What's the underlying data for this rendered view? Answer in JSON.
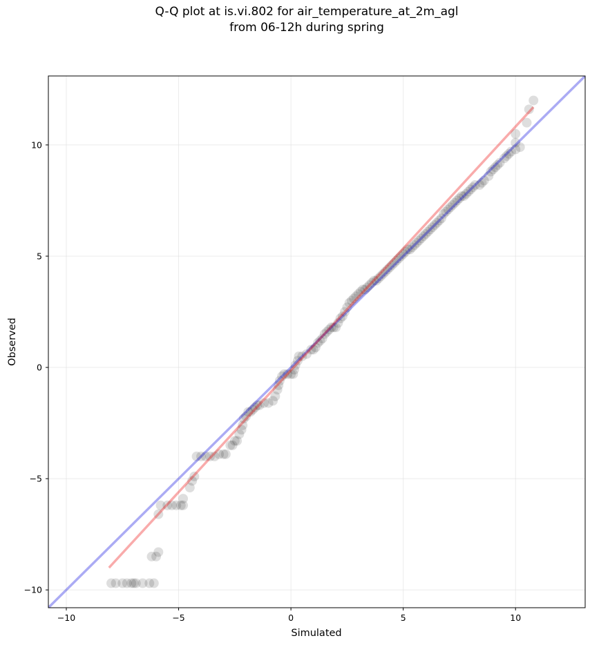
{
  "chart_data": {
    "type": "scatter",
    "title": [
      "Q-Q plot at is.vi.802 for air_temperature_at_2m_agl",
      "from 06-12h during spring"
    ],
    "xlabel": "Simulated",
    "ylabel": "Observed",
    "xlim": [
      -10.8,
      13.1
    ],
    "ylim": [
      -10.8,
      13.1
    ],
    "xticks": [
      -10,
      -5,
      0,
      5,
      10
    ],
    "yticks": [
      -10,
      -5,
      0,
      5,
      10
    ],
    "xtick_labels": [
      "−10",
      "−5",
      "0",
      "5",
      "10"
    ],
    "ytick_labels": [
      "−10",
      "−5",
      "0",
      "5",
      "10"
    ],
    "grid": true,
    "colors": {
      "points": "#000000",
      "identity_line": "#0000dd",
      "fit_line": "#ee0000",
      "grid": "#dddddd"
    },
    "reference_lines": [
      {
        "role": "identity",
        "x": [
          -10.8,
          13.1
        ],
        "y": [
          -10.8,
          13.1
        ]
      },
      {
        "role": "fit",
        "x": [
          -8.1,
          10.8
        ],
        "y": [
          -9.0,
          11.7
        ]
      }
    ],
    "series": [
      {
        "points": [
          [
            -8.0,
            -9.7
          ],
          [
            -7.8,
            -9.7
          ],
          [
            -7.5,
            -9.7
          ],
          [
            -7.3,
            -9.7
          ],
          [
            -7.1,
            -9.7
          ],
          [
            -7.0,
            -9.7
          ],
          [
            -6.9,
            -9.7
          ],
          [
            -6.6,
            -9.7
          ],
          [
            -6.3,
            -9.7
          ],
          [
            -6.1,
            -9.7
          ],
          [
            -6.2,
            -8.5
          ],
          [
            -6.0,
            -8.5
          ],
          [
            -5.9,
            -8.3
          ],
          [
            -5.9,
            -6.6
          ],
          [
            -5.8,
            -6.2
          ],
          [
            -5.5,
            -6.2
          ],
          [
            -5.3,
            -6.2
          ],
          [
            -5.1,
            -6.2
          ],
          [
            -4.9,
            -6.2
          ],
          [
            -4.8,
            -6.2
          ],
          [
            -4.8,
            -5.9
          ],
          [
            -4.5,
            -5.4
          ],
          [
            -4.4,
            -5.1
          ],
          [
            -4.3,
            -4.9
          ],
          [
            -4.2,
            -4.0
          ],
          [
            -4.0,
            -4.0
          ],
          [
            -3.8,
            -4.0
          ],
          [
            -3.6,
            -4.0
          ],
          [
            -3.4,
            -4.0
          ],
          [
            -3.2,
            -3.9
          ],
          [
            -3.0,
            -3.9
          ],
          [
            -2.9,
            -3.9
          ],
          [
            -2.7,
            -3.5
          ],
          [
            -2.6,
            -3.5
          ],
          [
            -2.5,
            -3.3
          ],
          [
            -2.4,
            -3.3
          ],
          [
            -2.3,
            -3.0
          ],
          [
            -2.2,
            -2.8
          ],
          [
            -2.15,
            -2.6
          ],
          [
            -2.1,
            -2.3
          ],
          [
            -2.0,
            -2.2
          ],
          [
            -1.9,
            -2.0
          ],
          [
            -1.8,
            -2.0
          ],
          [
            -1.7,
            -1.9
          ],
          [
            -1.6,
            -1.8
          ],
          [
            -1.5,
            -1.7
          ],
          [
            -1.4,
            -1.7
          ],
          [
            -1.2,
            -1.6
          ],
          [
            -1.0,
            -1.6
          ],
          [
            -0.8,
            -1.5
          ],
          [
            -0.7,
            -1.3
          ],
          [
            -0.6,
            -1.0
          ],
          [
            -0.55,
            -0.8
          ],
          [
            -0.5,
            -0.6
          ],
          [
            -0.4,
            -0.4
          ],
          [
            -0.3,
            -0.3
          ],
          [
            -0.15,
            -0.3
          ],
          [
            0.0,
            -0.3
          ],
          [
            0.1,
            -0.3
          ],
          [
            0.15,
            -0.1
          ],
          [
            0.2,
            0.1
          ],
          [
            0.3,
            0.3
          ],
          [
            0.35,
            0.5
          ],
          [
            0.5,
            0.5
          ],
          [
            0.7,
            0.6
          ],
          [
            0.9,
            0.8
          ],
          [
            1.0,
            0.8
          ],
          [
            1.1,
            0.9
          ],
          [
            1.2,
            1.1
          ],
          [
            1.3,
            1.2
          ],
          [
            1.4,
            1.3
          ],
          [
            1.5,
            1.5
          ],
          [
            1.6,
            1.6
          ],
          [
            1.7,
            1.7
          ],
          [
            1.8,
            1.8
          ],
          [
            1.9,
            1.8
          ],
          [
            2.0,
            1.8
          ],
          [
            2.1,
            2.0
          ],
          [
            2.2,
            2.2
          ],
          [
            2.3,
            2.3
          ],
          [
            2.4,
            2.5
          ],
          [
            2.5,
            2.7
          ],
          [
            2.6,
            2.9
          ],
          [
            2.7,
            3.0
          ],
          [
            2.8,
            3.1
          ],
          [
            2.9,
            3.2
          ],
          [
            3.0,
            3.3
          ],
          [
            3.1,
            3.4
          ],
          [
            3.2,
            3.5
          ],
          [
            3.3,
            3.5
          ],
          [
            3.4,
            3.6
          ],
          [
            3.5,
            3.7
          ],
          [
            3.6,
            3.8
          ],
          [
            3.7,
            3.9
          ],
          [
            3.8,
            3.9
          ],
          [
            3.9,
            4.0
          ],
          [
            4.0,
            4.1
          ],
          [
            4.1,
            4.2
          ],
          [
            4.2,
            4.3
          ],
          [
            4.3,
            4.4
          ],
          [
            4.4,
            4.5
          ],
          [
            4.5,
            4.6
          ],
          [
            4.6,
            4.7
          ],
          [
            4.7,
            4.8
          ],
          [
            4.8,
            4.9
          ],
          [
            4.9,
            5.0
          ],
          [
            5.0,
            5.1
          ],
          [
            5.1,
            5.2
          ],
          [
            5.2,
            5.3
          ],
          [
            5.3,
            5.3
          ],
          [
            5.4,
            5.4
          ],
          [
            5.5,
            5.5
          ],
          [
            5.6,
            5.6
          ],
          [
            5.7,
            5.7
          ],
          [
            5.8,
            5.8
          ],
          [
            5.9,
            5.9
          ],
          [
            6.0,
            6.0
          ],
          [
            6.1,
            6.1
          ],
          [
            6.2,
            6.2
          ],
          [
            6.3,
            6.3
          ],
          [
            6.4,
            6.4
          ],
          [
            6.5,
            6.5
          ],
          [
            6.6,
            6.6
          ],
          [
            6.7,
            6.7
          ],
          [
            6.8,
            6.9
          ],
          [
            6.9,
            7.0
          ],
          [
            7.0,
            7.1
          ],
          [
            7.1,
            7.2
          ],
          [
            7.2,
            7.3
          ],
          [
            7.3,
            7.4
          ],
          [
            7.4,
            7.5
          ],
          [
            7.5,
            7.6
          ],
          [
            7.6,
            7.7
          ],
          [
            7.7,
            7.7
          ],
          [
            7.8,
            7.8
          ],
          [
            7.9,
            7.9
          ],
          [
            8.0,
            8.0
          ],
          [
            8.1,
            8.1
          ],
          [
            8.2,
            8.2
          ],
          [
            8.4,
            8.2
          ],
          [
            8.5,
            8.3
          ],
          [
            8.6,
            8.4
          ],
          [
            8.8,
            8.6
          ],
          [
            8.9,
            8.8
          ],
          [
            9.0,
            8.9
          ],
          [
            9.1,
            9.0
          ],
          [
            9.2,
            9.1
          ],
          [
            9.3,
            9.2
          ],
          [
            9.5,
            9.4
          ],
          [
            9.6,
            9.5
          ],
          [
            9.7,
            9.6
          ],
          [
            9.8,
            9.7
          ],
          [
            10.0,
            9.8
          ],
          [
            10.2,
            9.9
          ],
          [
            10.0,
            10.1
          ],
          [
            10.0,
            10.5
          ],
          [
            10.5,
            11.0
          ],
          [
            10.6,
            11.6
          ],
          [
            10.8,
            12.0
          ]
        ]
      }
    ]
  }
}
